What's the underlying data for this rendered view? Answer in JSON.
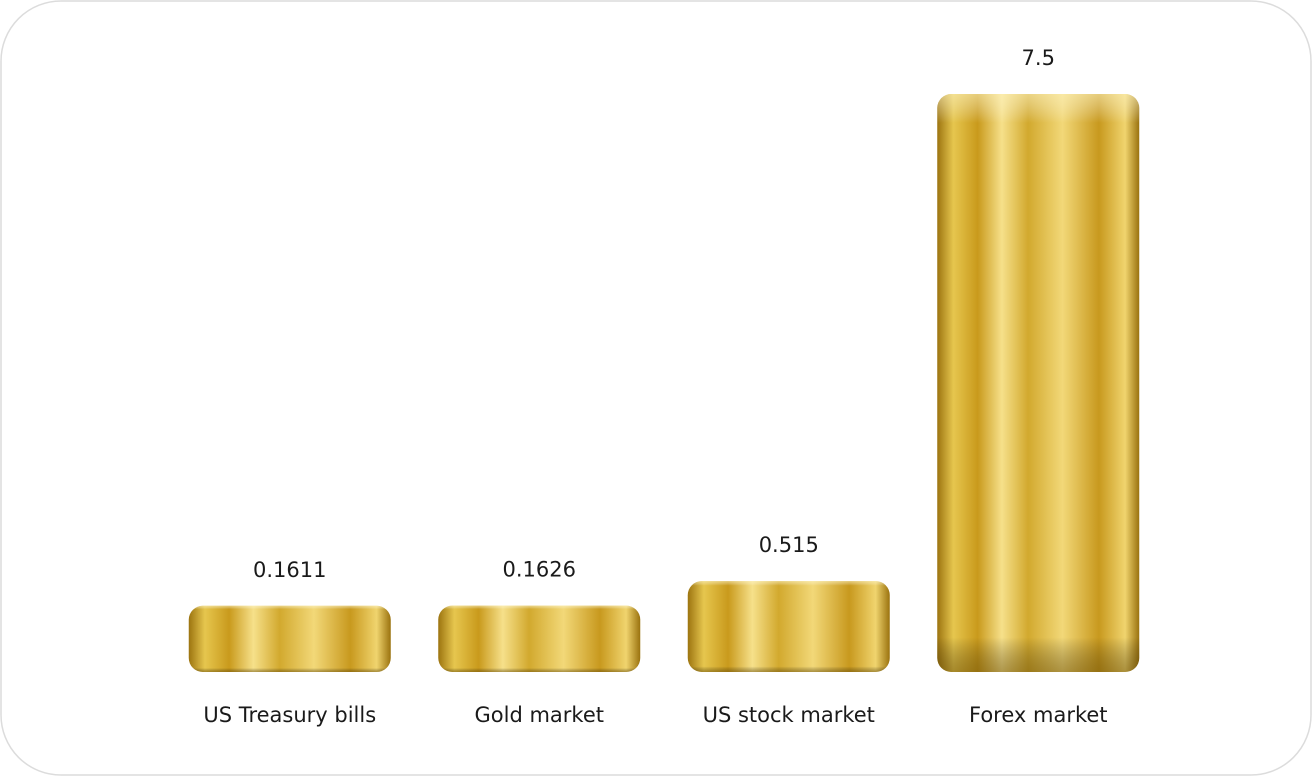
{
  "chart_data": {
    "type": "bar",
    "categories": [
      "US Treasury bills",
      "Gold market",
      "US stock market",
      "Forex market"
    ],
    "values": [
      0.1611,
      0.1626,
      0.515,
      7.5
    ],
    "color": "#d4a72c"
  }
}
